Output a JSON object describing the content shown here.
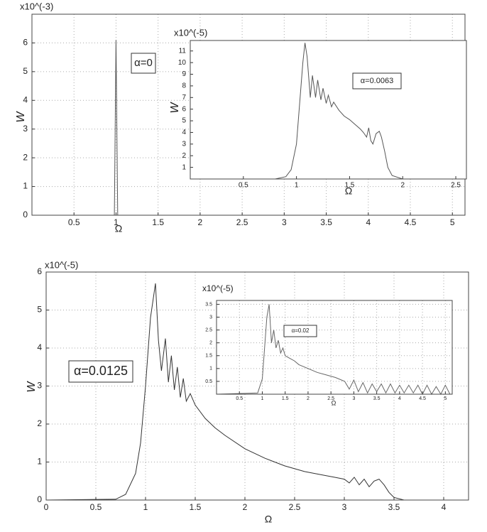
{
  "chart_data": [
    {
      "type": "line",
      "multiplier": "x10^(-3)",
      "annotation": "α=0",
      "xlabel": "Ω",
      "ylabel": "W",
      "color": "#555555",
      "grid": true,
      "xlim": [
        0,
        5.15
      ],
      "ylim": [
        0,
        7
      ],
      "xticks": [
        0.5,
        1,
        1.5,
        2,
        2.5,
        3,
        3.5,
        4,
        4.5,
        5
      ],
      "yticks": [
        0,
        1,
        2,
        3,
        4,
        5,
        6
      ],
      "x": [
        0,
        0.98,
        1.0,
        1.02,
        5.15
      ],
      "values": [
        0,
        0,
        6.1,
        0,
        0
      ]
    },
    {
      "type": "line",
      "multiplier": "x10^(-5)",
      "annotation": "α=0.0063",
      "xlabel": "Ω",
      "ylabel": "W",
      "color": "#555555",
      "grid": false,
      "xlim": [
        0,
        2.6
      ],
      "ylim": [
        0,
        11.9
      ],
      "xticks": [
        0.5,
        1,
        1.5,
        2,
        2.5
      ],
      "yticks": [
        1,
        2,
        3,
        4,
        5,
        6,
        7,
        8,
        9,
        10,
        11
      ],
      "x": [
        0,
        0.8,
        0.9,
        0.95,
        1.0,
        1.03,
        1.06,
        1.08,
        1.1,
        1.13,
        1.15,
        1.18,
        1.2,
        1.23,
        1.25,
        1.28,
        1.3,
        1.33,
        1.35,
        1.4,
        1.45,
        1.5,
        1.55,
        1.6,
        1.63,
        1.66,
        1.68,
        1.7,
        1.72,
        1.75,
        1.78,
        1.8,
        1.83,
        1.86,
        1.9,
        2.0,
        2.6
      ],
      "values": [
        0,
        0,
        0.2,
        0.8,
        3,
        6.5,
        10,
        11.7,
        10.5,
        7,
        8.9,
        7,
        8.5,
        6.8,
        7.8,
        6.5,
        7.2,
        6.2,
        6.6,
        5.9,
        5.4,
        5.1,
        4.7,
        4.3,
        4.0,
        3.6,
        4.4,
        3.3,
        3.0,
        3.9,
        4.1,
        3.6,
        2.4,
        1.0,
        0.3,
        0,
        0
      ]
    },
    {
      "type": "line",
      "multiplier": "x10^(-5)",
      "annotation": "α=0.0125",
      "xlabel": "Ω",
      "ylabel": "W",
      "color": "#333333",
      "grid": true,
      "xlim": [
        0,
        4.25
      ],
      "ylim": [
        0,
        6
      ],
      "xticks": [
        0,
        0.5,
        1,
        1.5,
        2,
        2.5,
        3,
        3.5,
        4
      ],
      "yticks": [
        0,
        1,
        2,
        3,
        4,
        5,
        6
      ],
      "x": [
        0,
        0.7,
        0.8,
        0.9,
        0.95,
        1.0,
        1.05,
        1.1,
        1.13,
        1.16,
        1.2,
        1.23,
        1.26,
        1.29,
        1.32,
        1.35,
        1.38,
        1.41,
        1.45,
        1.5,
        1.6,
        1.7,
        1.8,
        2.0,
        2.2,
        2.4,
        2.6,
        2.8,
        2.9,
        3.0,
        3.05,
        3.1,
        3.15,
        3.2,
        3.25,
        3.3,
        3.35,
        3.4,
        3.45,
        3.5,
        3.6,
        3.85
      ],
      "values": [
        0,
        0.02,
        0.15,
        0.7,
        1.5,
        3.0,
        4.8,
        5.7,
        4.2,
        3.4,
        4.25,
        3.1,
        3.8,
        2.9,
        3.5,
        2.7,
        3.2,
        2.6,
        2.8,
        2.5,
        2.15,
        1.9,
        1.7,
        1.35,
        1.1,
        0.9,
        0.75,
        0.65,
        0.6,
        0.55,
        0.45,
        0.6,
        0.4,
        0.55,
        0.35,
        0.5,
        0.55,
        0.4,
        0.2,
        0.07,
        0,
        0
      ]
    },
    {
      "type": "line",
      "multiplier": "x10^(-5)",
      "annotation": "α=0.02",
      "xlabel": "Ω",
      "color": "#666666",
      "grid": true,
      "xlim": [
        0,
        5.15
      ],
      "ylim": [
        0,
        3.65
      ],
      "xticks": [
        0.5,
        1,
        1.5,
        2,
        2.5,
        3,
        3.5,
        4,
        4.5,
        5
      ],
      "yticks": [
        0.5,
        1,
        1.5,
        2,
        2.5,
        3,
        3.5
      ],
      "x": [
        0,
        0.9,
        1.0,
        1.05,
        1.1,
        1.15,
        1.2,
        1.25,
        1.3,
        1.35,
        1.4,
        1.45,
        1.5,
        1.6,
        1.7,
        1.8,
        2.0,
        2.2,
        2.4,
        2.6,
        2.8,
        2.9,
        3.0,
        3.1,
        3.2,
        3.3,
        3.4,
        3.5,
        3.6,
        3.7,
        3.8,
        3.9,
        4.0,
        4.1,
        4.2,
        4.3,
        4.4,
        4.5,
        4.6,
        4.7,
        4.8,
        4.9,
        5.0,
        5.1
      ],
      "values": [
        0,
        0.05,
        0.6,
        1.8,
        3.0,
        3.5,
        2.0,
        2.5,
        1.8,
        2.1,
        1.6,
        1.8,
        1.5,
        1.4,
        1.3,
        1.15,
        1.0,
        0.85,
        0.75,
        0.65,
        0.5,
        0.2,
        0.55,
        0.1,
        0.45,
        0.05,
        0.4,
        0.1,
        0.4,
        0.05,
        0.4,
        0.05,
        0.35,
        0.05,
        0.35,
        0.05,
        0.35,
        0.0,
        0.35,
        0.0,
        0.3,
        0.0,
        0.35,
        0.0
      ]
    }
  ]
}
